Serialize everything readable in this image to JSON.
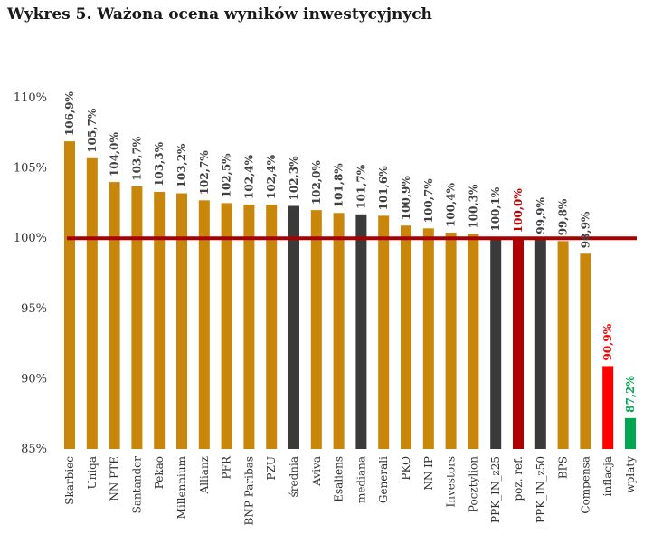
{
  "title": "Wykres 5. Ważona ocena wyników inwestycyjnych",
  "colors": {
    "standard": "#C8860A",
    "aggregate": "#3A3A3A",
    "reference": "#B00000",
    "inflation": "#FF0000",
    "contributions": "#00A651",
    "reference_line": "#A80000",
    "label_default": "#404040",
    "label_reference": "#C00000",
    "label_inflation": "#FF0000",
    "label_contributions": "#00A651"
  },
  "chart_data": {
    "type": "bar",
    "title": "Wykres 5. Ważona ocena wyników inwestycyjnych",
    "xlabel": "",
    "ylabel": "",
    "ylim": [
      85,
      110
    ],
    "yticks": [
      "110%",
      "105%",
      "100%",
      "95%",
      "90%",
      "85%"
    ],
    "ytick_values": [
      110,
      105,
      100,
      95,
      90,
      85
    ],
    "reference_line": 100,
    "grid": false,
    "legend": "none",
    "categories": [
      "Skarbiec",
      "Uniqa",
      "NN PTE",
      "Santander",
      "Pekao",
      "Millennium",
      "Allianz",
      "PFR",
      "BNP Paribas",
      "PZU",
      "średnia",
      "Aviva",
      "Esaliens",
      "mediana",
      "Generali",
      "PKO",
      "NN IP",
      "Investors",
      "Pocztylion",
      "PPK_IN_z25",
      "poz. ref.",
      "PPK_IN_z50",
      "BPS",
      "Compensa",
      "inflacja",
      "wpłaty"
    ],
    "values": [
      106.9,
      105.7,
      104.0,
      103.7,
      103.3,
      103.2,
      102.7,
      102.5,
      102.4,
      102.4,
      102.3,
      102.0,
      101.8,
      101.7,
      101.6,
      100.9,
      100.7,
      100.4,
      100.3,
      100.1,
      100.0,
      99.9,
      99.8,
      98.9,
      90.9,
      87.2
    ],
    "labels": [
      "106,9%",
      "105,7%",
      "104,0%",
      "103,7%",
      "103,3%",
      "103,2%",
      "102,7%",
      "102,5%",
      "102,4%",
      "102,4%",
      "102,3%",
      "102,0%",
      "101,8%",
      "101,7%",
      "101,6%",
      "100,9%",
      "100,7%",
      "100,4%",
      "100,3%",
      "100,1%",
      "100,0%",
      "99,9%",
      "99,8%",
      "98,9%",
      "90,9%",
      "87,2%"
    ],
    "bar_kinds": [
      "standard",
      "standard",
      "standard",
      "standard",
      "standard",
      "standard",
      "standard",
      "standard",
      "standard",
      "standard",
      "aggregate",
      "standard",
      "standard",
      "aggregate",
      "standard",
      "standard",
      "standard",
      "standard",
      "standard",
      "aggregate",
      "reference",
      "aggregate",
      "standard",
      "standard",
      "inflation",
      "contributions"
    ]
  }
}
